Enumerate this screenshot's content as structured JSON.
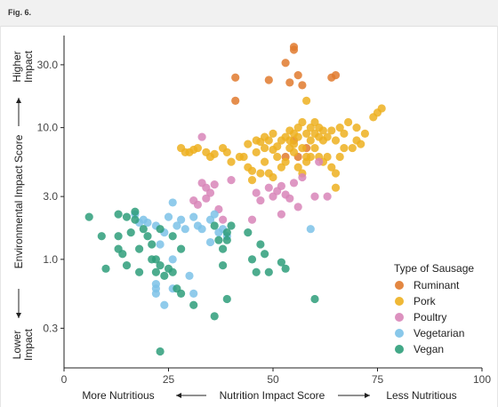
{
  "figure_label": "Fig. 6.",
  "chart_data": {
    "type": "scatter",
    "title": "",
    "xlabel": "Nutrition Impact Score",
    "ylabel": "Environmental Impact Score",
    "x_annotations": {
      "left": "More Nutritious",
      "right": "Less Nutritious"
    },
    "y_annotations": {
      "top": "Higher\nImpact",
      "bottom": "Lower\nImpact"
    },
    "xlim": [
      0,
      100
    ],
    "ylim_log": [
      0.15,
      50
    ],
    "y_scale": "log",
    "x_ticks": [
      0,
      25,
      50,
      75,
      100
    ],
    "y_ticks": [
      {
        "value": 0.3,
        "label": "0.3"
      },
      {
        "value": 1.0,
        "label": "1.0"
      },
      {
        "value": 3.0,
        "label": "3.0"
      },
      {
        "value": 10.0,
        "label": "10.0"
      },
      {
        "value": 30.0,
        "label": "30.0"
      }
    ],
    "grid": false,
    "legend": {
      "title": "Type of Sausage",
      "position": "bottom-right"
    },
    "series": [
      {
        "name": "Ruminant",
        "color": "#e07a2e",
        "points": [
          [
            41,
            24
          ],
          [
            41,
            16
          ],
          [
            49,
            23
          ],
          [
            53,
            31
          ],
          [
            54,
            22
          ],
          [
            55,
            41
          ],
          [
            55,
            39
          ],
          [
            56,
            25
          ],
          [
            57,
            21
          ],
          [
            64,
            24
          ],
          [
            65,
            25
          ],
          [
            56,
            6
          ],
          [
            58,
            7
          ],
          [
            55,
            8
          ],
          [
            53,
            6
          ]
        ]
      },
      {
        "name": "Pork",
        "color": "#edb020",
        "points": [
          [
            28,
            7
          ],
          [
            29,
            6.5
          ],
          [
            30,
            6.5
          ],
          [
            31,
            6.8
          ],
          [
            32,
            7
          ],
          [
            34,
            6.5
          ],
          [
            35,
            6
          ],
          [
            36,
            6.3
          ],
          [
            38,
            7
          ],
          [
            39,
            6.5
          ],
          [
            40,
            5.5
          ],
          [
            42,
            6
          ],
          [
            44,
            7.5
          ],
          [
            46,
            8
          ],
          [
            48,
            5.5
          ],
          [
            49,
            4.5
          ],
          [
            50,
            6.8
          ],
          [
            51,
            7.2
          ],
          [
            52,
            8
          ],
          [
            53,
            8.5
          ],
          [
            54,
            9.5
          ],
          [
            55,
            9
          ],
          [
            56,
            10
          ],
          [
            57,
            11
          ],
          [
            58,
            9
          ],
          [
            59,
            8
          ],
          [
            60,
            7
          ],
          [
            61,
            6
          ],
          [
            62,
            5.5
          ],
          [
            63,
            8.5
          ],
          [
            64,
            9.5
          ],
          [
            65,
            8
          ],
          [
            66,
            10
          ],
          [
            67,
            9
          ],
          [
            68,
            11
          ],
          [
            70,
            8
          ],
          [
            72,
            9
          ],
          [
            74,
            12
          ],
          [
            75,
            13
          ],
          [
            76,
            14
          ],
          [
            47,
            4.5
          ],
          [
            48,
            7
          ],
          [
            49,
            8
          ],
          [
            50,
            9
          ],
          [
            51,
            6
          ],
          [
            52,
            5
          ],
          [
            53,
            5.5
          ],
          [
            54,
            7
          ],
          [
            55,
            6.5
          ],
          [
            56,
            5
          ],
          [
            57,
            4.5
          ],
          [
            58,
            5.5
          ],
          [
            59,
            6
          ],
          [
            60,
            9
          ],
          [
            61,
            10
          ],
          [
            62,
            8
          ],
          [
            63,
            6
          ],
          [
            64,
            5
          ],
          [
            65,
            4.5
          ],
          [
            66,
            6
          ],
          [
            67,
            7
          ],
          [
            69,
            7
          ],
          [
            70,
            10
          ],
          [
            71,
            7.5
          ],
          [
            43,
            6
          ],
          [
            44,
            5
          ],
          [
            45,
            4.7
          ],
          [
            46,
            6.5
          ],
          [
            47,
            7.8
          ],
          [
            48,
            8.5
          ],
          [
            54,
            8
          ],
          [
            55,
            7.5
          ],
          [
            56,
            8.5
          ],
          [
            57,
            7
          ],
          [
            58,
            6
          ],
          [
            59,
            10
          ],
          [
            60,
            11
          ],
          [
            61,
            8.5
          ],
          [
            62,
            9.5
          ],
          [
            58,
            16
          ],
          [
            65,
            3.5
          ],
          [
            45,
            4
          ],
          [
            50,
            4.2
          ]
        ]
      },
      {
        "name": "Poultry",
        "color": "#d885b8",
        "points": [
          [
            33,
            8.5
          ],
          [
            33,
            3.8
          ],
          [
            34,
            3.5
          ],
          [
            35,
            3.2
          ],
          [
            36,
            3.7
          ],
          [
            37,
            2.4
          ],
          [
            31,
            2.8
          ],
          [
            32,
            2.6
          ],
          [
            34,
            2.9
          ],
          [
            46,
            3.2
          ],
          [
            47,
            2.8
          ],
          [
            49,
            3.5
          ],
          [
            50,
            3
          ],
          [
            51,
            3.3
          ],
          [
            52,
            3.6
          ],
          [
            53,
            3.1
          ],
          [
            54,
            2.9
          ],
          [
            55,
            3.8
          ],
          [
            56,
            2.5
          ],
          [
            57,
            4.2
          ],
          [
            60,
            3
          ],
          [
            61,
            5.5
          ],
          [
            45,
            2
          ],
          [
            52,
            2.2
          ],
          [
            63,
            3
          ],
          [
            38,
            2
          ],
          [
            40,
            4
          ]
        ]
      },
      {
        "name": "Vegetarian",
        "color": "#7cc2e8",
        "points": [
          [
            17,
            2.2
          ],
          [
            19,
            2
          ],
          [
            20,
            1.9
          ],
          [
            22,
            1.8
          ],
          [
            24,
            1.6
          ],
          [
            25,
            2.1
          ],
          [
            26,
            2.7
          ],
          [
            27,
            1.8
          ],
          [
            28,
            2
          ],
          [
            29,
            1.7
          ],
          [
            31,
            2.1
          ],
          [
            32,
            1.8
          ],
          [
            33,
            1.7
          ],
          [
            35,
            2
          ],
          [
            36,
            2.2
          ],
          [
            37,
            1.6
          ],
          [
            38,
            1.7
          ],
          [
            39,
            1.5
          ],
          [
            22,
            0.6
          ],
          [
            22,
            0.55
          ],
          [
            22,
            0.65
          ],
          [
            24,
            0.45
          ],
          [
            26,
            0.6
          ],
          [
            30,
            0.75
          ],
          [
            31,
            0.55
          ],
          [
            18,
            1.9
          ],
          [
            23,
            1.3
          ],
          [
            59,
            1.7
          ],
          [
            26,
            1.0
          ],
          [
            35,
            1.35
          ]
        ]
      },
      {
        "name": "Vegan",
        "color": "#2e9e7a",
        "points": [
          [
            6,
            2.1
          ],
          [
            9,
            1.5
          ],
          [
            10,
            0.85
          ],
          [
            13,
            2.2
          ],
          [
            13,
            1.5
          ],
          [
            13,
            1.2
          ],
          [
            14,
            1.1
          ],
          [
            15,
            2.1
          ],
          [
            15,
            0.9
          ],
          [
            16,
            1.6
          ],
          [
            17,
            2
          ],
          [
            17,
            2.3
          ],
          [
            18,
            1.2
          ],
          [
            19,
            1.7
          ],
          [
            20,
            1.5
          ],
          [
            21,
            1.3
          ],
          [
            22,
            1
          ],
          [
            22,
            0.8
          ],
          [
            23,
            1.7
          ],
          [
            23,
            0.9
          ],
          [
            24,
            0.75
          ],
          [
            25,
            0.85
          ],
          [
            26,
            1.5
          ],
          [
            26,
            0.8
          ],
          [
            27,
            0.6
          ],
          [
            28,
            0.55
          ],
          [
            31,
            0.45
          ],
          [
            36,
            1.8
          ],
          [
            37,
            1.4
          ],
          [
            38,
            1.2
          ],
          [
            38,
            0.9
          ],
          [
            39,
            1.4
          ],
          [
            39,
            1.6
          ],
          [
            40,
            1.8
          ],
          [
            44,
            1.6
          ],
          [
            45,
            1
          ],
          [
            46,
            0.8
          ],
          [
            47,
            1.3
          ],
          [
            48,
            1.1
          ],
          [
            49,
            0.8
          ],
          [
            52,
            0.95
          ],
          [
            53,
            0.85
          ],
          [
            60,
            0.5
          ],
          [
            39,
            0.5
          ],
          [
            36,
            0.37
          ],
          [
            23,
            0.2
          ],
          [
            18,
            0.8
          ],
          [
            21,
            1.0
          ],
          [
            28,
            1.2
          ]
        ]
      }
    ]
  }
}
